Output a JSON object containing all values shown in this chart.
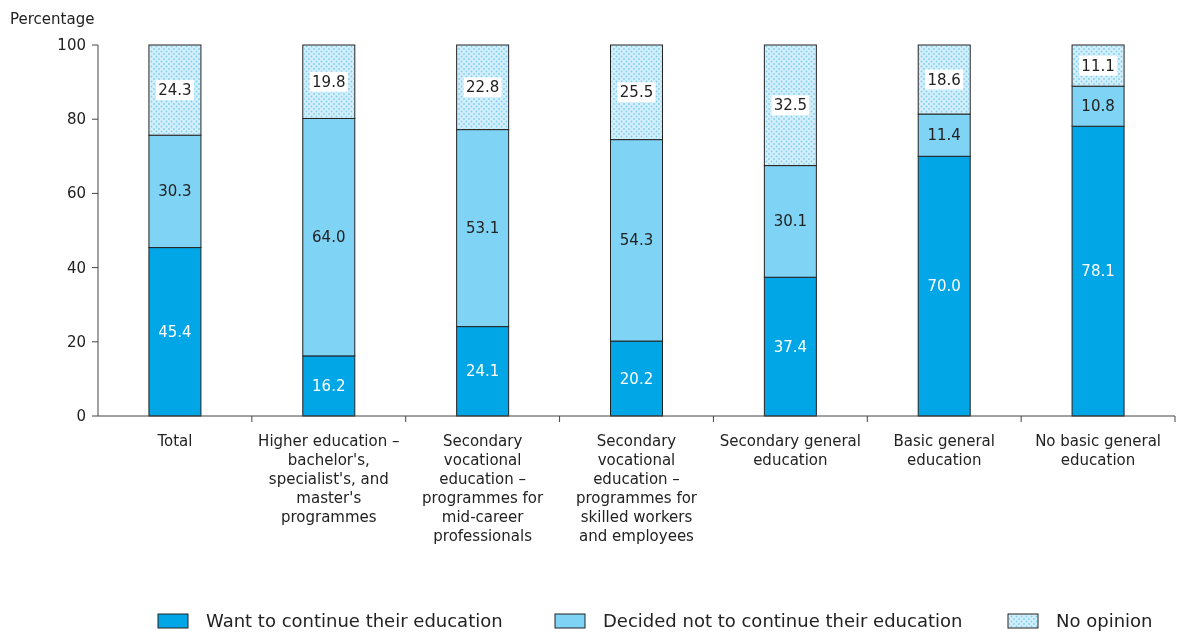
{
  "chart_data": {
    "type": "bar",
    "stacked": true,
    "ylabel": "Percentage",
    "categories": [
      "Total",
      "Higher education – bachelor's, specialist's, and master's programmes",
      "Secondary vocational education – programmes for mid-career professionals",
      "Secondary vocational education – programmes for skilled workers and employees",
      "Secondary general education",
      "Basic general education",
      "No basic general education"
    ],
    "series": [
      {
        "name": "Want to continue their education",
        "color": "#00a6e6",
        "values": [
          45.4,
          16.2,
          24.1,
          20.2,
          37.4,
          70.0,
          78.1
        ],
        "value_labels": [
          "45.4",
          "16.2",
          "24.1",
          "20.2",
          "37.4",
          "70.0",
          "78.1"
        ]
      },
      {
        "name": "Decided not to continue their education",
        "color": "#7fd3f5",
        "values": [
          30.3,
          64.0,
          53.1,
          54.3,
          30.1,
          11.4,
          10.8
        ],
        "value_labels": [
          "30.3",
          "64.0",
          "53.1",
          "54.3",
          "30.1",
          "11.4",
          "10.8"
        ]
      },
      {
        "name": "No opinion",
        "color": "#d2effb",
        "values": [
          24.3,
          19.8,
          22.8,
          25.5,
          32.5,
          18.6,
          11.1
        ],
        "value_labels": [
          "24.3",
          "19.8",
          "22.8",
          "25.5",
          "32.5",
          "18.6",
          "11.1"
        ]
      }
    ],
    "ylim": [
      0,
      100
    ],
    "yticks": [
      0,
      20,
      40,
      60,
      80,
      100
    ],
    "legend": "bottom",
    "grid": false
  }
}
